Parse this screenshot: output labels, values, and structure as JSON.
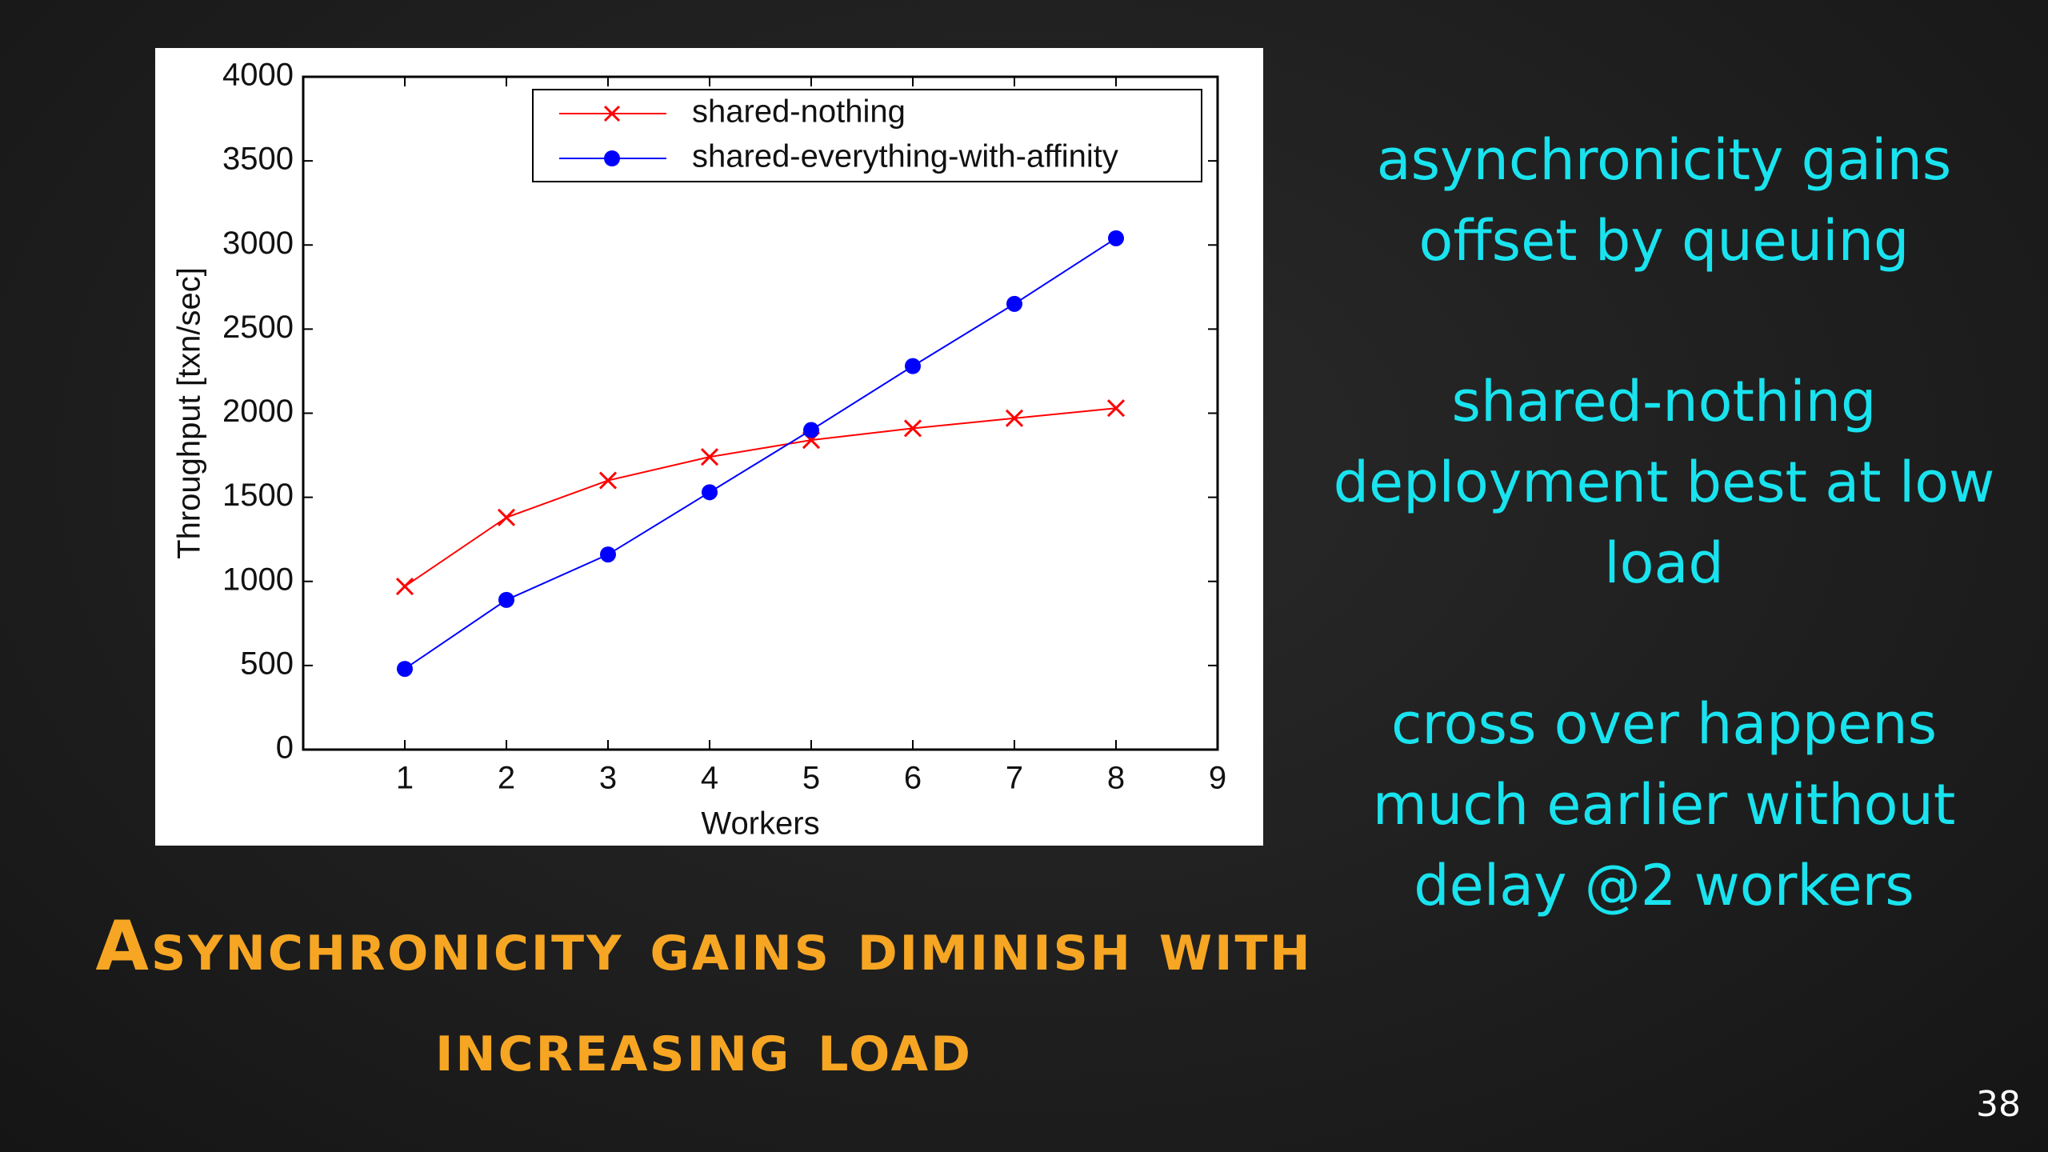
{
  "chart_data": {
    "type": "line",
    "x_label": "Workers",
    "y_label": "Throughput [txn/sec]",
    "x": [
      1,
      2,
      3,
      4,
      5,
      6,
      7,
      8
    ],
    "series": [
      {
        "name": "shared-nothing",
        "color": "#ff0000",
        "marker": "x",
        "values": [
          970,
          1380,
          1600,
          1740,
          1840,
          1910,
          1970,
          2030
        ]
      },
      {
        "name": "shared-everything-with-affinity",
        "color": "#0000ff",
        "marker": "o",
        "values": [
          480,
          890,
          1160,
          1530,
          1900,
          2280,
          2650,
          3040
        ]
      }
    ],
    "xlim": [
      0,
      9
    ],
    "xticks": [
      1,
      2,
      3,
      4,
      5,
      6,
      7,
      8,
      9
    ],
    "ylim": [
      0,
      4000
    ],
    "yticks": [
      0,
      500,
      1000,
      1500,
      2000,
      2500,
      3000,
      3500,
      4000
    ],
    "grid": false,
    "legend": "upper right"
  },
  "slide": {
    "heading": "Asynchronicity gains diminish with increasing load",
    "notes": [
      "asynchronicity gains offset by queuing",
      "shared-nothing deployment best at low load",
      "cross over happens much earlier without delay @2 workers"
    ],
    "page_number": "38"
  }
}
